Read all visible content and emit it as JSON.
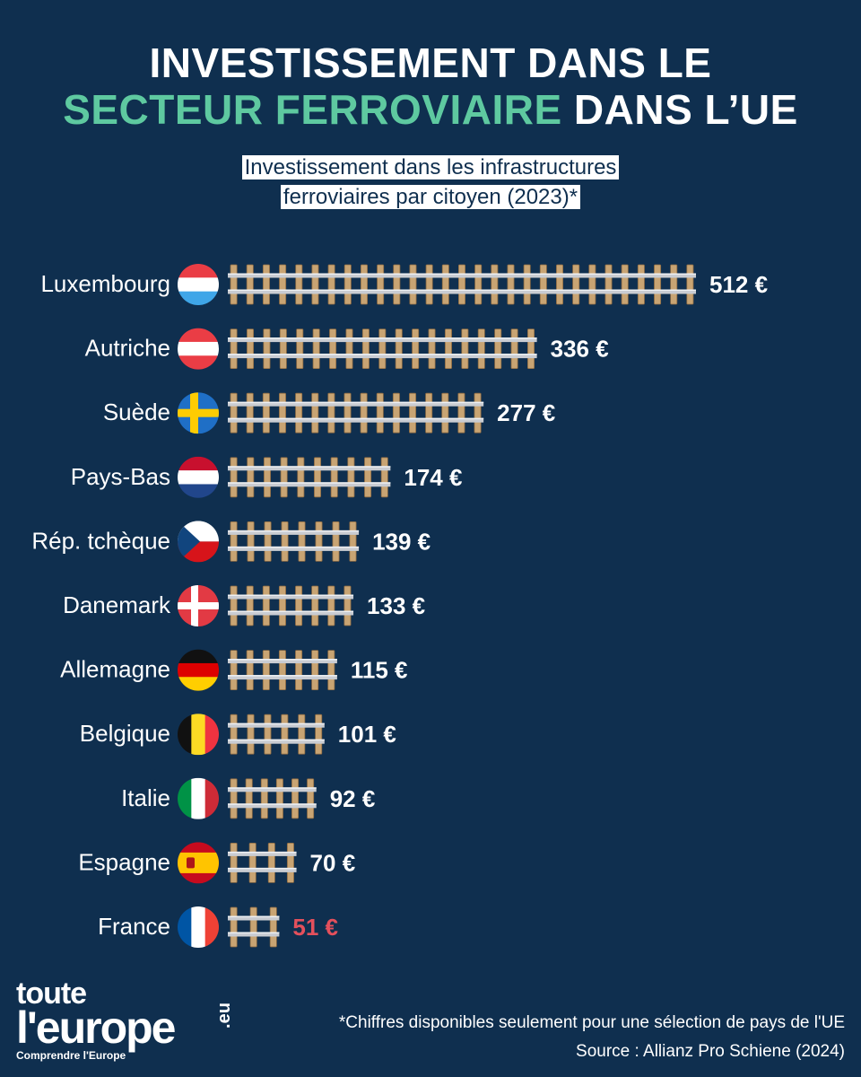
{
  "header": {
    "title_line1": "INVESTISSEMENT DANS LE",
    "title_line2_accent": "SECTEUR FERROVIAIRE",
    "title_line2_rest": "DANS L’UE",
    "subtitle_line1": "Investissement dans les infrastructures",
    "subtitle_line2": "ferroviaires par citoyen (2023)*"
  },
  "chart_data": {
    "type": "bar",
    "orientation": "horizontal",
    "title": "Investissement dans les infrastructures ferroviaires par citoyen (2023)*",
    "unit": "€",
    "categories": [
      "Luxembourg",
      "Autriche",
      "Suède",
      "Pays-Bas",
      "Rép. tchèque",
      "Danemark",
      "Allemagne",
      "Belgique",
      "Italie",
      "Espagne",
      "France"
    ],
    "values": [
      512,
      336,
      277,
      174,
      139,
      133,
      115,
      101,
      92,
      70,
      51
    ],
    "value_labels": [
      "512 €",
      "336 €",
      "277 €",
      "174 €",
      "139 €",
      "133 €",
      "115 €",
      "101 €",
      "92 €",
      "70 €",
      "51 €"
    ],
    "flags": [
      "luxembourg-flag",
      "austria-flag",
      "sweden-flag",
      "netherlands-flag",
      "czechia-flag",
      "denmark-flag",
      "germany-flag",
      "belgium-flag",
      "italy-flag",
      "spain-flag",
      "france-flag"
    ],
    "highlight": "France",
    "highlight_color": "#e4505c",
    "label_color": "#ffffff",
    "bar_style": "railway-track",
    "tie_color": "#c8a473",
    "rail_color": "#c9ccd2",
    "xlim": [
      0,
      512
    ]
  },
  "brand": {
    "line1": "toute",
    "line2": "l'europe",
    "suffix": ".eu",
    "tagline": "Comprendre l'Europe"
  },
  "footer": {
    "note": "*Chiffres disponibles seulement pour une sélection de pays de l'UE",
    "source": "Source : Allianz Pro Schiene (2024)"
  }
}
